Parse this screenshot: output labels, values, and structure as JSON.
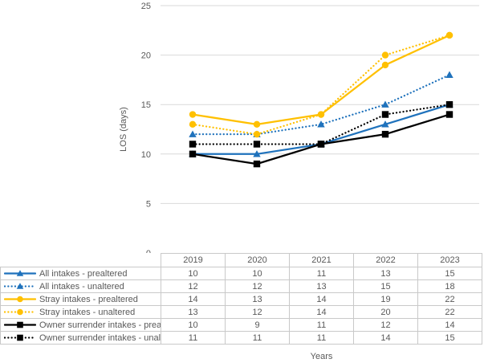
{
  "chart_data": {
    "type": "line",
    "title": "",
    "xlabel": "Years",
    "ylabel": "LOS (days)",
    "categories": [
      "2019",
      "2020",
      "2021",
      "2022",
      "2023"
    ],
    "ylim": [
      0,
      25
    ],
    "ytick_step": 5,
    "yticks": [
      0,
      5,
      10,
      15,
      20,
      25
    ],
    "grid": true,
    "legend_position": "table-left-column",
    "series": [
      {
        "name": "All intakes - prealtered",
        "values": [
          10,
          10,
          11,
          13,
          15
        ],
        "color": "#1f72bc",
        "marker": "triangle",
        "line_style": "solid"
      },
      {
        "name": "All intakes - unaltered",
        "values": [
          12,
          12,
          13,
          15,
          18
        ],
        "color": "#1f72bc",
        "marker": "triangle",
        "line_style": "dotted"
      },
      {
        "name": "Stray intakes - prealtered",
        "values": [
          14,
          13,
          14,
          19,
          22
        ],
        "color": "#ffc000",
        "marker": "circle",
        "line_style": "solid"
      },
      {
        "name": "Stray intakes - unaltered",
        "values": [
          13,
          12,
          14,
          20,
          22
        ],
        "color": "#ffc000",
        "marker": "circle",
        "line_style": "dotted"
      },
      {
        "name": "Owner surrender intakes - prealtered",
        "values": [
          10,
          9,
          11,
          12,
          14
        ],
        "color": "#000000",
        "marker": "square",
        "line_style": "solid"
      },
      {
        "name": "Owner surrender intakes - unaltered",
        "values": [
          11,
          11,
          11,
          14,
          15
        ],
        "color": "#000000",
        "marker": "square",
        "line_style": "dotted"
      }
    ]
  },
  "colors": {
    "gridline": "#d9d9d9",
    "table_border": "#c9c9c9",
    "text_gray": "#595959",
    "series_blue": "#1f72bc",
    "series_yellow": "#ffc000",
    "series_black": "#000000"
  }
}
